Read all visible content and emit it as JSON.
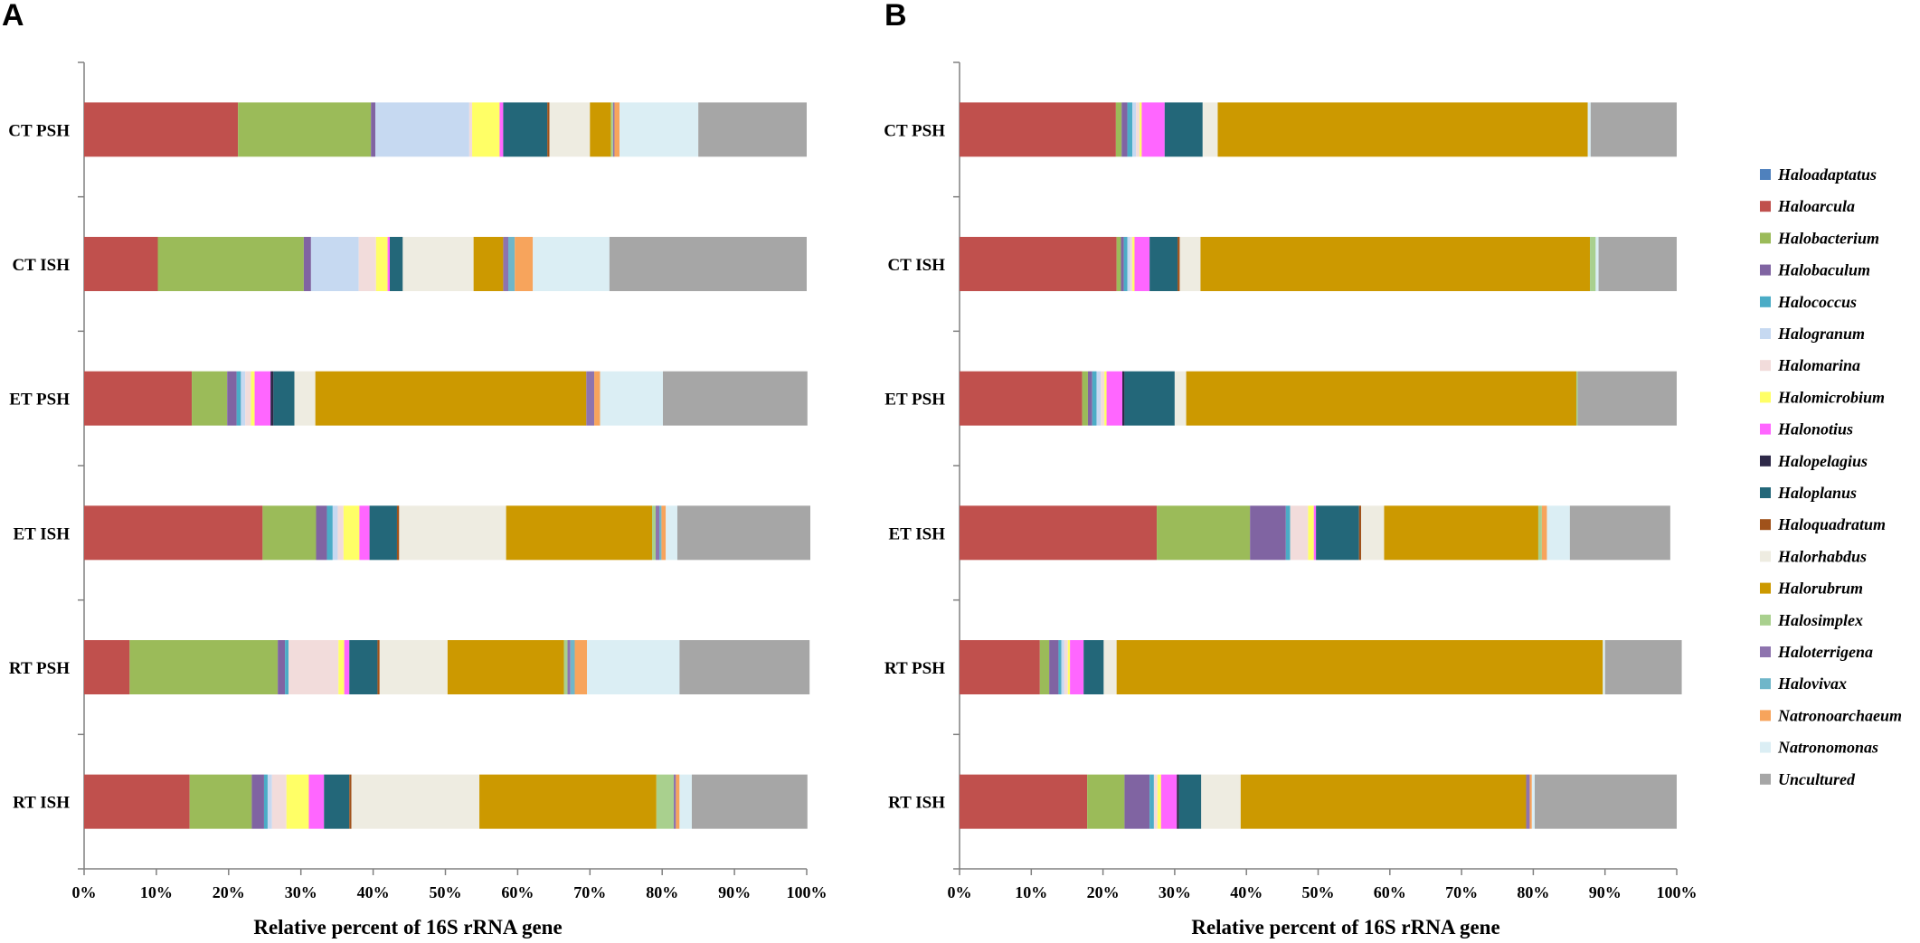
{
  "figure": {
    "panel_labels": [
      "A",
      "B"
    ]
  },
  "chart_data": [
    {
      "type": "bar",
      "orientation": "horizontal",
      "stacked": true,
      "panel": "A",
      "xlabel": "Relative percent of 16S rRNA gene",
      "xlim": [
        0,
        100
      ],
      "xticks": [
        "0%",
        "10%",
        "20%",
        "30%",
        "40%",
        "50%",
        "60%",
        "70%",
        "80%",
        "90%",
        "100%"
      ],
      "categories": [
        "CT PSH",
        "CT ISH",
        "ET PSH",
        "ET ISH",
        "RT PSH",
        "RT ISH"
      ],
      "series": [
        {
          "name": "Haloadaptatus",
          "values": [
            0,
            0,
            0,
            0,
            0,
            0
          ]
        },
        {
          "name": "Haloarcula",
          "values": [
            21.3,
            10.2,
            14.9,
            24.7,
            6.3,
            14.6
          ]
        },
        {
          "name": "Halobacterium",
          "values": [
            18.4,
            20.2,
            4.9,
            7.4,
            20.5,
            8.6
          ]
        },
        {
          "name": "Halobaculum",
          "values": [
            0.6,
            1.0,
            1.3,
            1.5,
            1.0,
            1.7
          ]
        },
        {
          "name": "Halococcus",
          "values": [
            0,
            0,
            0.6,
            0.8,
            0.5,
            0.5
          ]
        },
        {
          "name": "Halogranum",
          "values": [
            13.0,
            6.6,
            0.6,
            0.7,
            0,
            0.6
          ]
        },
        {
          "name": "Halomarina",
          "values": [
            0.4,
            2.4,
            0.8,
            0.8,
            6.9,
            2.0
          ]
        },
        {
          "name": "Halomicrobium",
          "values": [
            3.8,
            1.6,
            0.5,
            2.2,
            0.8,
            3.1
          ]
        },
        {
          "name": "Halonotius",
          "values": [
            0.5,
            0.3,
            2.2,
            1.4,
            0.7,
            2.1
          ]
        },
        {
          "name": "Halopelagius",
          "values": [
            0,
            0,
            0.4,
            0,
            0,
            0
          ]
        },
        {
          "name": "Haloplanus",
          "values": [
            6.1,
            1.8,
            2.9,
            3.8,
            3.9,
            3.5
          ]
        },
        {
          "name": "Haloquadratum",
          "values": [
            0.3,
            0,
            0,
            0.3,
            0.3,
            0.3
          ]
        },
        {
          "name": "Halorhabdus",
          "values": [
            5.6,
            9.8,
            2.9,
            14.8,
            9.4,
            17.7
          ]
        },
        {
          "name": "Halorubrum",
          "values": [
            2.9,
            4.1,
            37.5,
            20.2,
            16.1,
            24.5
          ]
        },
        {
          "name": "Halosimplex",
          "values": [
            0.3,
            0,
            0,
            0.5,
            0.5,
            2.4
          ]
        },
        {
          "name": "Haloterrigena",
          "values": [
            0.2,
            0.7,
            1.1,
            0.5,
            0.4,
            0.3
          ]
        },
        {
          "name": "Halovivax",
          "values": [
            0,
            0.9,
            0,
            0.3,
            0.6,
            0
          ]
        },
        {
          "name": "Natronoarchaeum",
          "values": [
            0.7,
            2.5,
            0.8,
            0.6,
            1.7,
            0.5
          ]
        },
        {
          "name": "Natronomonas",
          "values": [
            10.9,
            10.6,
            8.7,
            1.6,
            12.8,
            1.7
          ]
        },
        {
          "name": "Uncultured",
          "values": [
            15.0,
            27.3,
            20.0,
            18.4,
            18.0,
            16.0
          ]
        }
      ]
    },
    {
      "type": "bar",
      "orientation": "horizontal",
      "stacked": true,
      "panel": "B",
      "xlabel": "Relative percent of 16S rRNA gene",
      "xlim": [
        0,
        100
      ],
      "xticks": [
        "0%",
        "10%",
        "20%",
        "30%",
        "40%",
        "50%",
        "60%",
        "70%",
        "80%",
        "90%",
        "100%"
      ],
      "categories": [
        "CT PSH",
        "CT ISH",
        "ET PSH",
        "ET ISH",
        "RT PSH",
        "RT ISH"
      ],
      "series": [
        {
          "name": "Haloadaptatus",
          "values": [
            0,
            0,
            0,
            0,
            0,
            0
          ]
        },
        {
          "name": "Haloarcula",
          "values": [
            21.8,
            21.9,
            17.1,
            27.5,
            11.2,
            17.8
          ]
        },
        {
          "name": "Halobacterium",
          "values": [
            0.8,
            0.6,
            0.8,
            13.0,
            1.3,
            5.2
          ]
        },
        {
          "name": "Halobaculum",
          "values": [
            0.8,
            0.4,
            0.6,
            5.0,
            1.3,
            3.5
          ]
        },
        {
          "name": "Halococcus",
          "values": [
            0.7,
            0.5,
            0.6,
            0.6,
            0.4,
            0.6
          ]
        },
        {
          "name": "Halogranum",
          "values": [
            0.5,
            0.4,
            0.6,
            0,
            0.4,
            0
          ]
        },
        {
          "name": "Halomarina",
          "values": [
            0.5,
            0.3,
            0.5,
            2.5,
            0.5,
            0.5
          ]
        },
        {
          "name": "Halomicrobium",
          "values": [
            0.3,
            0.3,
            0.3,
            0.8,
            0.3,
            0.5
          ]
        },
        {
          "name": "Halonotius",
          "values": [
            3.2,
            2.1,
            2.2,
            0.3,
            1.9,
            2.2
          ]
        },
        {
          "name": "Halopelagius",
          "values": [
            0,
            0,
            0.3,
            0,
            0,
            0.3
          ]
        },
        {
          "name": "Haloplanus",
          "values": [
            5.3,
            3.9,
            7.0,
            6.0,
            2.8,
            3.1
          ]
        },
        {
          "name": "Haloquadratum",
          "values": [
            0,
            0.3,
            0,
            0.3,
            0,
            0
          ]
        },
        {
          "name": "Halorhabdus",
          "values": [
            2.1,
            2.9,
            1.6,
            3.2,
            1.8,
            5.5
          ]
        },
        {
          "name": "Halorubrum",
          "values": [
            51.6,
            54.3,
            54.4,
            21.5,
            67.8,
            39.8
          ]
        },
        {
          "name": "Halosimplex",
          "values": [
            0,
            0.8,
            0.2,
            0.5,
            0,
            0
          ]
        },
        {
          "name": "Haloterrigena",
          "values": [
            0,
            0,
            0,
            0,
            0,
            0.5
          ]
        },
        {
          "name": "Halovivax",
          "values": [
            0,
            0,
            0,
            0,
            0,
            0
          ]
        },
        {
          "name": "Natronoarchaeum",
          "values": [
            0,
            0,
            0,
            0.7,
            0,
            0.3
          ]
        },
        {
          "name": "Natronomonas",
          "values": [
            0.4,
            0.4,
            0,
            3.2,
            0.3,
            0.4
          ]
        },
        {
          "name": "Uncultured",
          "values": [
            12.0,
            10.9,
            13.8,
            14.0,
            10.7,
            19.8
          ]
        }
      ]
    }
  ],
  "legend": {
    "placement": "right",
    "items": [
      {
        "name": "Haloadaptatus",
        "color": "#4f81bd"
      },
      {
        "name": "Haloarcula",
        "color": "#c0504d"
      },
      {
        "name": "Halobacterium",
        "color": "#9bbb59"
      },
      {
        "name": "Halobaculum",
        "color": "#8064a2"
      },
      {
        "name": "Halococcus",
        "color": "#4bacc6"
      },
      {
        "name": "Halogranum",
        "color": "#c6d9f1"
      },
      {
        "name": "Halomarina",
        "color": "#f2dcdb"
      },
      {
        "name": "Halomicrobium",
        "color": "#ffff66"
      },
      {
        "name": "Halonotius",
        "color": "#ff66ff"
      },
      {
        "name": "Halopelagius",
        "color": "#2e2948"
      },
      {
        "name": "Haloplanus",
        "color": "#236779"
      },
      {
        "name": "Haloquadratum",
        "color": "#a0521b"
      },
      {
        "name": "Halorhabdus",
        "color": "#eeece1"
      },
      {
        "name": "Halorubrum",
        "color": "#cc9900"
      },
      {
        "name": "Halosimplex",
        "color": "#a9d08e"
      },
      {
        "name": "Haloterrigena",
        "color": "#8e74ae"
      },
      {
        "name": "Halovivax",
        "color": "#6fb6c9"
      },
      {
        "name": "Natronoarchaeum",
        "color": "#f7a45c"
      },
      {
        "name": "Natronomonas",
        "color": "#dbeef4"
      },
      {
        "name": "Uncultured",
        "color": "#a6a6a6"
      }
    ]
  }
}
